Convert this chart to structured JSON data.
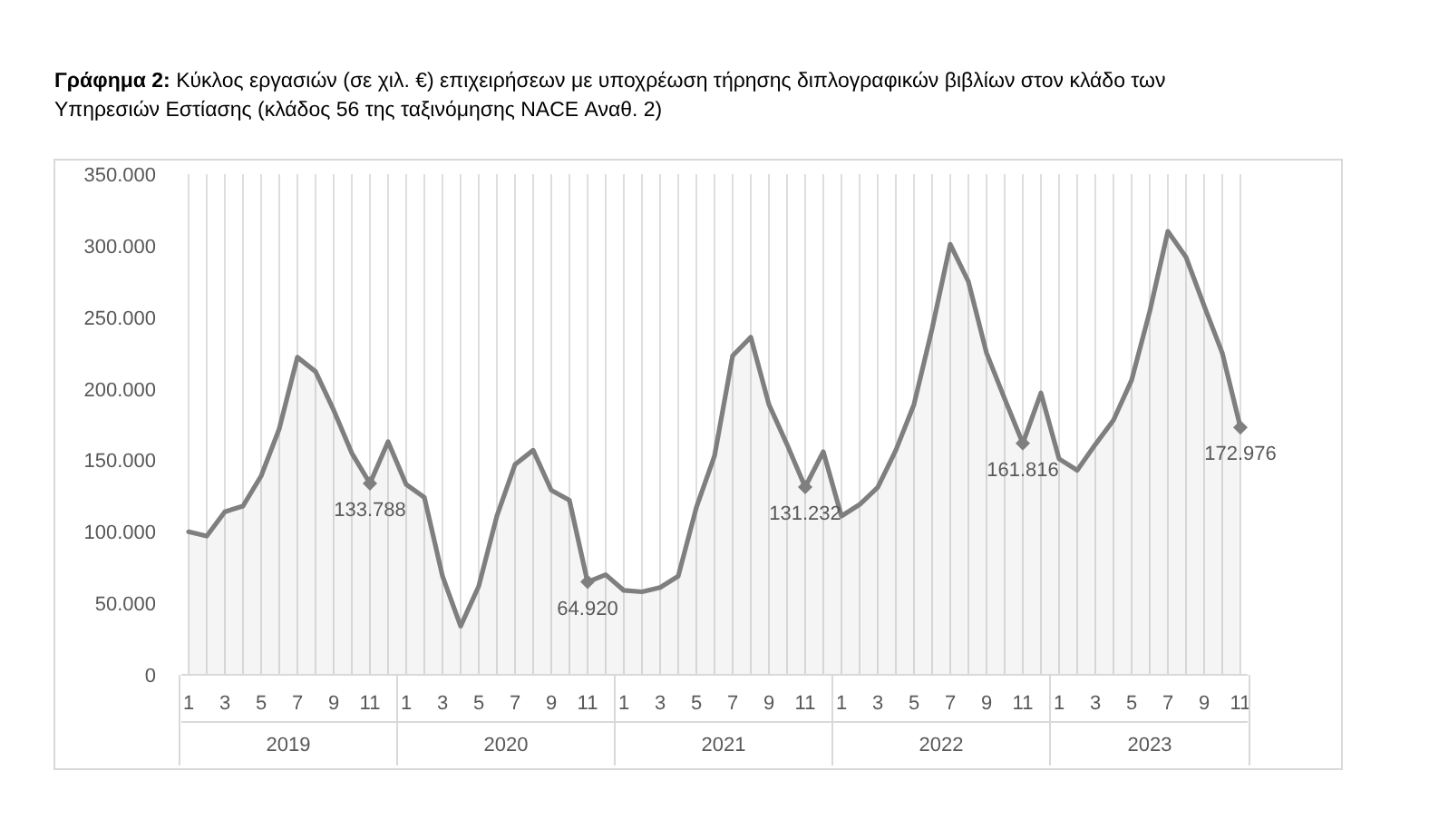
{
  "chart_data": {
    "type": "area",
    "title": "Γράφημα 2: Κύκλος εργασιών (σε χιλ. €) επιχειρήσεων με υποχρέωση τήρησης διπλογραφικών βιβλίων στον κλάδο των Υπηρεσιών Εστίασης (κλάδος 56 της ταξινόμησης NACE Αναθ. 2)",
    "categories": [
      "1",
      null,
      "3",
      null,
      "5",
      null,
      "7",
      null,
      "9",
      null,
      "11",
      null,
      "1",
      null,
      "3",
      null,
      "5",
      null,
      "7",
      null,
      "9",
      null,
      "11",
      null,
      "1",
      null,
      "3",
      null,
      "5",
      null,
      "7",
      null,
      "9",
      null,
      "11",
      null,
      "1",
      null,
      "3",
      null,
      "5",
      null,
      "7",
      null,
      "9",
      null,
      "11",
      null,
      "1",
      null,
      "3",
      null,
      "5",
      null,
      "7",
      null,
      "9",
      null,
      "11"
    ],
    "series": [
      {
        "color": "#7f7f7f",
        "values": [
          100000,
          97000,
          114000,
          118000,
          139000,
          172000,
          222000,
          212000,
          185000,
          155000,
          133788,
          163000,
          133000,
          124000,
          69000,
          34000,
          62000,
          111000,
          147000,
          157000,
          129000,
          122000,
          64920,
          70000,
          59000,
          58000,
          61000,
          69000,
          117000,
          153000,
          223000,
          236000,
          189000,
          161000,
          131232,
          156000,
          111000,
          119000,
          131000,
          157000,
          189000,
          242000,
          301000,
          275000,
          225000,
          193000,
          161816,
          197000,
          151000,
          143000,
          161000,
          178000,
          206000,
          254000,
          310000,
          292000,
          258000,
          225000,
          172976
        ],
        "value_labels": [
          null,
          null,
          null,
          null,
          null,
          null,
          null,
          null,
          null,
          null,
          "133.788",
          null,
          null,
          null,
          null,
          null,
          null,
          null,
          null,
          null,
          null,
          null,
          "64.920",
          null,
          null,
          null,
          null,
          null,
          null,
          null,
          null,
          null,
          null,
          null,
          "131.232",
          null,
          null,
          null,
          null,
          null,
          null,
          null,
          null,
          null,
          null,
          null,
          "161.816",
          null,
          null,
          null,
          null,
          null,
          null,
          null,
          null,
          null,
          null,
          null,
          "172.976"
        ]
      }
    ],
    "ylim": [
      0,
      350000
    ],
    "yticks": [
      {
        "value": 0,
        "label": "0"
      },
      {
        "value": 50000,
        "label": "50.000"
      },
      {
        "value": 100000,
        "label": "100.000"
      },
      {
        "value": 150000,
        "label": "150.000"
      },
      {
        "value": 200000,
        "label": "200.000"
      },
      {
        "value": 250000,
        "label": "250.000"
      },
      {
        "value": 300000,
        "label": "300.000"
      },
      {
        "value": 350000,
        "label": "350.000"
      }
    ],
    "annotations": [
      "2019",
      "2020",
      "2021",
      "2022",
      "2023"
    ],
    "grid": "x"
  }
}
